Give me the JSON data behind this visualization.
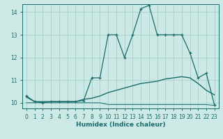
{
  "xlabel": "Humidex (Indice chaleur)",
  "bg_color": "#cce9e5",
  "grid_color": "#aad4cf",
  "line_color": "#1a6b6b",
  "xlim": [
    -0.5,
    23.5
  ],
  "ylim": [
    9.75,
    14.35
  ],
  "xticks": [
    0,
    1,
    2,
    3,
    4,
    5,
    6,
    7,
    8,
    9,
    10,
    11,
    12,
    13,
    14,
    15,
    16,
    17,
    18,
    19,
    20,
    21,
    22,
    23
  ],
  "yticks": [
    10,
    11,
    12,
    13,
    14
  ],
  "line1_x": [
    0,
    1,
    2,
    3,
    4,
    5,
    6,
    7,
    8,
    9,
    10,
    11,
    12,
    13,
    14,
    15,
    16,
    17,
    18,
    19,
    20,
    21,
    22,
    23
  ],
  "line1_y": [
    10.3,
    10.05,
    10.0,
    10.05,
    10.05,
    10.05,
    10.05,
    10.1,
    11.1,
    11.1,
    13.0,
    13.0,
    12.0,
    13.0,
    14.15,
    14.3,
    13.0,
    13.0,
    13.0,
    13.0,
    12.2,
    11.1,
    11.3,
    9.9
  ],
  "line2_x": [
    0,
    1,
    2,
    3,
    4,
    5,
    6,
    7,
    8,
    9,
    10,
    11,
    12,
    13,
    14,
    15,
    16,
    17,
    18,
    19,
    20,
    21,
    22,
    23
  ],
  "line2_y": [
    10.25,
    10.05,
    10.05,
    10.05,
    10.05,
    10.05,
    10.05,
    10.15,
    10.2,
    10.3,
    10.45,
    10.55,
    10.65,
    10.75,
    10.85,
    10.9,
    10.95,
    11.05,
    11.1,
    11.15,
    11.1,
    10.85,
    10.55,
    10.35
  ],
  "line3_x": [
    0,
    1,
    2,
    3,
    4,
    5,
    6,
    7,
    8,
    9,
    10,
    11,
    12,
    13,
    14,
    15,
    16,
    17,
    18,
    19,
    20,
    21,
    22,
    23
  ],
  "line3_y": [
    10.0,
    10.0,
    10.0,
    10.0,
    10.0,
    10.0,
    10.0,
    10.0,
    10.0,
    10.0,
    9.92,
    9.92,
    9.92,
    9.92,
    9.92,
    9.92,
    9.92,
    9.92,
    9.92,
    9.92,
    9.92,
    9.92,
    9.92,
    9.88
  ]
}
